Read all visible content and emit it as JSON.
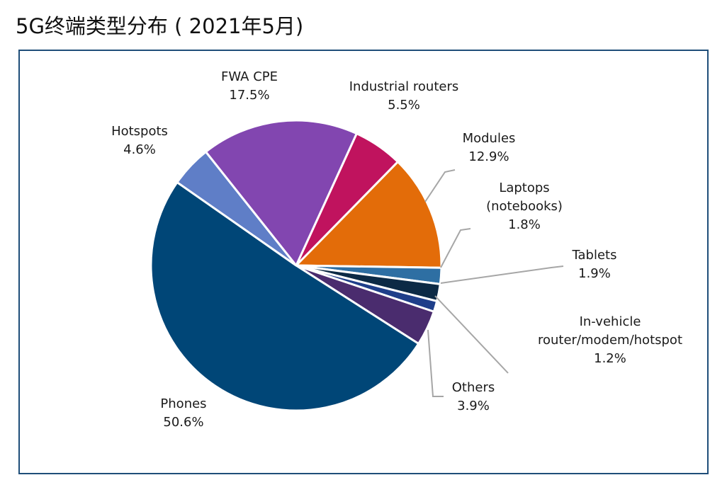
{
  "page": {
    "title": "5G终端类型分布 ( 2021年5月)"
  },
  "chart_data": {
    "type": "pie",
    "title": "",
    "unit": "%",
    "slices": [
      {
        "name": "Industrial routers",
        "value": 5.5,
        "value_label": "5.5%",
        "color": "#c0135e"
      },
      {
        "name": "Modules",
        "value": 12.9,
        "value_label": "12.9%",
        "color": "#e36c09"
      },
      {
        "name": "Laptops (notebooks)",
        "value": 1.8,
        "value_label": "1.8%",
        "color": "#2e6fa3"
      },
      {
        "name": "Tablets",
        "value": 1.9,
        "value_label": "1.9%",
        "color": "#0c2a45"
      },
      {
        "name": "In-vehicle router/modem/hotspot",
        "value": 1.2,
        "value_label": "1.2%",
        "color": "#1f3f8a"
      },
      {
        "name": "Others",
        "value": 3.9,
        "value_label": "3.9%",
        "color": "#4a2c6e"
      },
      {
        "name": "Phones",
        "value": 50.6,
        "value_label": "50.6%",
        "color": "#004677"
      },
      {
        "name": "Hotspots",
        "value": 4.6,
        "value_label": "4.6%",
        "color": "#5f7ec7"
      },
      {
        "name": "FWA CPE",
        "value": 17.5,
        "value_label": "17.5%",
        "color": "#8246b0"
      }
    ],
    "labels": [
      {
        "lines": [
          "Industrial routers",
          "5.5%"
        ]
      },
      {
        "lines": [
          "Modules",
          "12.9%"
        ]
      },
      {
        "lines": [
          "Laptops",
          "(notebooks)",
          "1.8%"
        ]
      },
      {
        "lines": [
          "Tablets",
          "1.9%"
        ]
      },
      {
        "lines": [
          "In-vehicle",
          "router/modem/hotspot",
          "1.2%"
        ]
      },
      {
        "lines": [
          "Others",
          "3.9%"
        ]
      },
      {
        "lines": [
          "Phones",
          "50.6%"
        ]
      },
      {
        "lines": [
          "Hotspots",
          "4.6%"
        ]
      },
      {
        "lines": [
          "FWA CPE",
          "17.5%"
        ]
      }
    ]
  }
}
